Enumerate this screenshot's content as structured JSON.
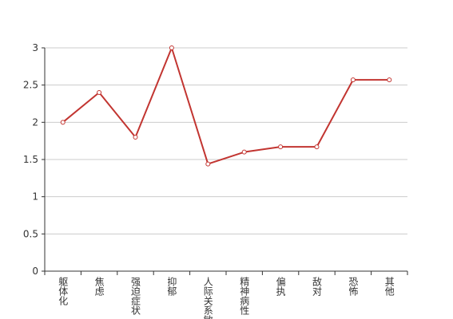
{
  "chart_data": {
    "type": "line",
    "categories": [
      "躯体化",
      "焦虑",
      "强迫症状",
      "抑郁",
      "人际关系敏感",
      "精神病性",
      "偏执",
      "敌对",
      "恐怖",
      "其他"
    ],
    "values": [
      2,
      2.4,
      1.8,
      3,
      1.44,
      1.6,
      1.67,
      1.67,
      2.57,
      2.57
    ],
    "color": "#c23531",
    "ylim": [
      0,
      3
    ],
    "yticks": [
      0,
      0.5,
      1,
      1.5,
      2,
      2.5,
      3
    ],
    "grid": true
  }
}
